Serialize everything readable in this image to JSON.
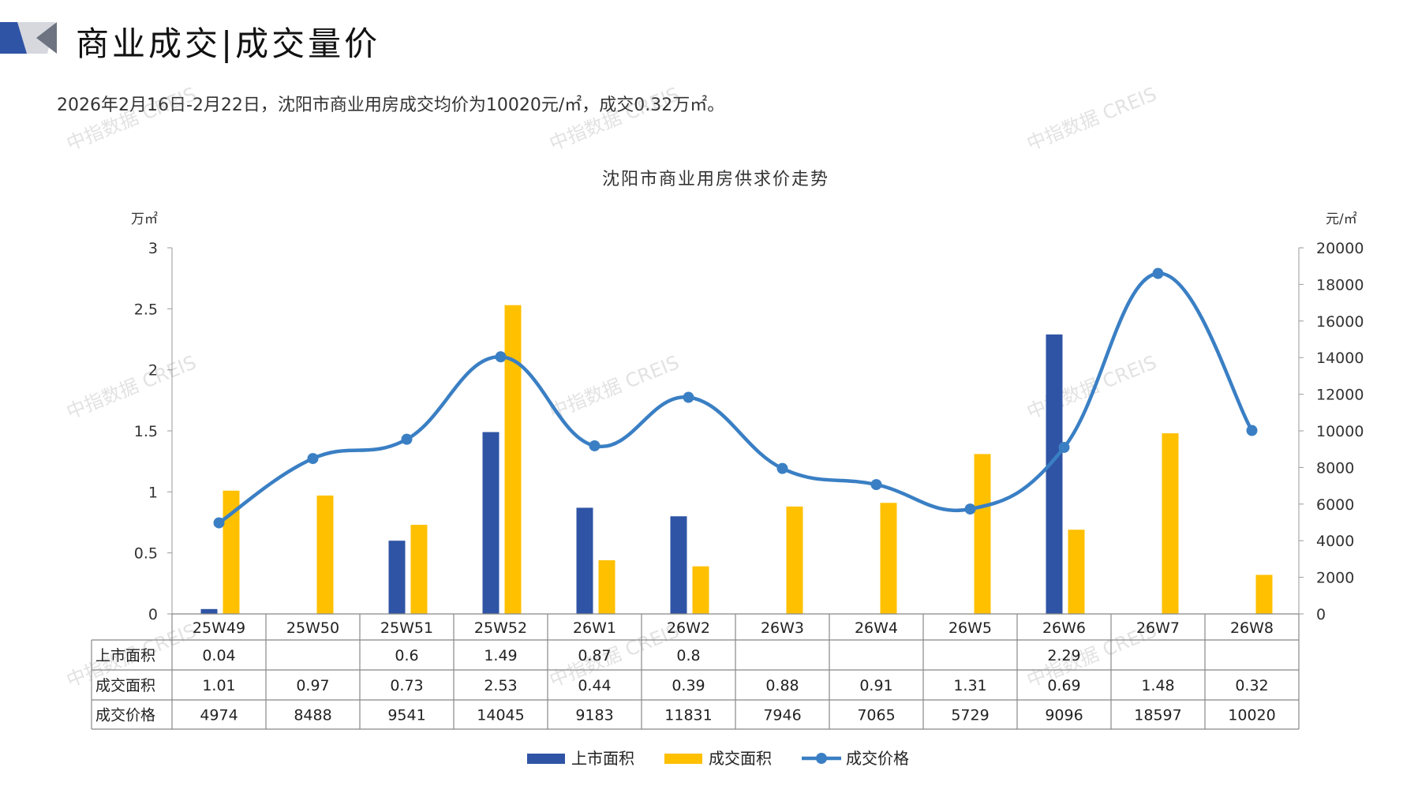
{
  "header": {
    "title": "商业成交|成交量价",
    "summary": "2026年2月16日-2月22日，沈阳市商业用房成交均价为10020元/㎡，成交0.32万㎡。"
  },
  "watermark": "中指数据 CREIS",
  "colors": {
    "supply": "#2F54A5",
    "deal_area": "#FFC000",
    "price": "#3A7FC4",
    "grid": "#999999"
  },
  "chart_data": {
    "type": "bar+line",
    "title": "沈阳市商业用房供求价走势",
    "left_axis_unit": "万㎡",
    "right_axis_unit": "元/㎡",
    "left_ylim": [
      0,
      3
    ],
    "left_ticks": [
      "0",
      "0.5",
      "1",
      "1.5",
      "2",
      "2.5",
      "3"
    ],
    "right_ylim": [
      0,
      20000
    ],
    "right_ticks": [
      "0",
      "2000",
      "4000",
      "6000",
      "8000",
      "10000",
      "12000",
      "14000",
      "16000",
      "18000",
      "20000"
    ],
    "categories": [
      "25W49",
      "25W50",
      "25W51",
      "25W52",
      "26W1",
      "26W2",
      "26W3",
      "26W4",
      "26W5",
      "26W6",
      "26W7",
      "26W8"
    ],
    "series": [
      {
        "name": "上市面积",
        "type": "bar",
        "axis": "left",
        "values": [
          0.04,
          null,
          0.6,
          1.49,
          0.87,
          0.8,
          null,
          null,
          null,
          2.29,
          null,
          null
        ],
        "labels": [
          "0.04",
          "",
          "0.6",
          "1.49",
          "0.87",
          "0.8",
          "",
          "",
          "",
          "2.29",
          "",
          ""
        ]
      },
      {
        "name": "成交面积",
        "type": "bar",
        "axis": "left",
        "values": [
          1.01,
          0.97,
          0.73,
          2.53,
          0.44,
          0.39,
          0.88,
          0.91,
          1.31,
          0.69,
          1.48,
          0.32
        ],
        "labels": [
          "1.01",
          "0.97",
          "0.73",
          "2.53",
          "0.44",
          "0.39",
          "0.88",
          "0.91",
          "1.31",
          "0.69",
          "1.48",
          "0.32"
        ]
      },
      {
        "name": "成交价格",
        "type": "line",
        "axis": "right",
        "values": [
          4974,
          8488,
          9541,
          14045,
          9183,
          11831,
          7946,
          7065,
          5729,
          9096,
          18597,
          10020
        ],
        "labels": [
          "4974",
          "8488",
          "9541",
          "14045",
          "9183",
          "11831",
          "7946",
          "7065",
          "5729",
          "9096",
          "18597",
          "10020"
        ]
      }
    ],
    "legend": [
      "上市面积",
      "成交面积",
      "成交价格"
    ],
    "legend_position": "bottom"
  }
}
